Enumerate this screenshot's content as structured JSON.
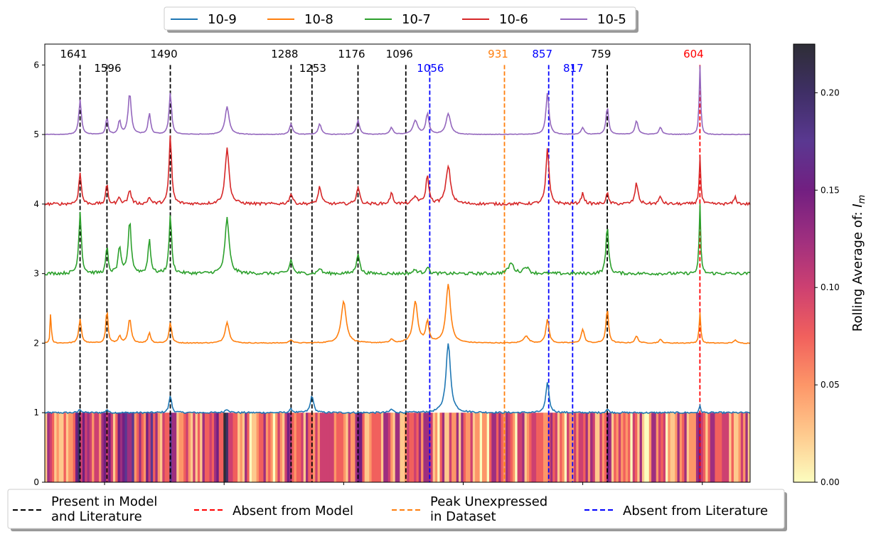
{
  "chart_data": {
    "type": "line",
    "x_range_cm": [
      1700,
      520
    ],
    "ylim": [
      0,
      6.3
    ],
    "yticks": [
      "0",
      "1",
      "2",
      "3",
      "4",
      "5",
      "6"
    ],
    "series": [
      {
        "name": "10-9",
        "color": "#1f77b4",
        "offset": 1
      },
      {
        "name": "10-8",
        "color": "#ff7f0e",
        "offset": 2
      },
      {
        "name": "10-7",
        "color": "#2ca02c",
        "offset": 3
      },
      {
        "name": "10-6",
        "color": "#d62728",
        "offset": 4
      },
      {
        "name": "10-5",
        "color": "#9467bd",
        "offset": 5
      }
    ],
    "peak_lines": [
      {
        "value": 1641,
        "label": "1641",
        "category": "present",
        "label_row": "top"
      },
      {
        "value": 1596,
        "label": "1596",
        "category": "present",
        "label_row": "bottom"
      },
      {
        "value": 1490,
        "label": "1490",
        "category": "present",
        "label_row": "top"
      },
      {
        "value": 1288,
        "label": "1288",
        "category": "present",
        "label_row": "top"
      },
      {
        "value": 1253,
        "label": "1253",
        "category": "present",
        "label_row": "bottom"
      },
      {
        "value": 1176,
        "label": "1176",
        "category": "present",
        "label_row": "top"
      },
      {
        "value": 1096,
        "label": "1096",
        "category": "present",
        "label_row": "top"
      },
      {
        "value": 1056,
        "label": "1056",
        "category": "lit_absent",
        "label_row": "bottom"
      },
      {
        "value": 931,
        "label": "931",
        "category": "unexpressed",
        "label_row": "top"
      },
      {
        "value": 857,
        "label": "857",
        "category": "lit_absent",
        "label_row": "top"
      },
      {
        "value": 817,
        "label": "817",
        "category": "lit_absent",
        "label_row": "bottom"
      },
      {
        "value": 759,
        "label": "759",
        "category": "present",
        "label_row": "top"
      },
      {
        "value": 604,
        "label": "604",
        "category": "model_absent",
        "label_row": "top"
      }
    ],
    "line_legend": [
      {
        "key": "present",
        "label_1": "Present in Model",
        "label_2": "and Literature",
        "color": "#000000"
      },
      {
        "key": "model_absent",
        "label_1": "Absent from Model",
        "label_2": "",
        "color": "#ff0000"
      },
      {
        "key": "unexpressed",
        "label_1": "Peak Unexpressed",
        "label_2": "in Dataset",
        "color": "#ff7f0e"
      },
      {
        "key": "lit_absent",
        "label_1": "Absent from Literature",
        "label_2": "",
        "color": "#0000ff"
      }
    ],
    "label_colors": {
      "present": "#000000",
      "model_absent": "#ff0000",
      "unexpressed": "#ff7f0e",
      "lit_absent": "#0000ff"
    },
    "colorbar": {
      "label": "Rolling Average of: ",
      "label_symbol": "I",
      "label_sub": "m",
      "range": [
        0,
        0.225
      ],
      "ticks": [
        "0.00",
        "0.05",
        "0.10",
        "0.15",
        "0.20"
      ],
      "tick_values": [
        0,
        0.05,
        0.1,
        0.15,
        0.2
      ],
      "colors": [
        "#fcfdbf",
        "#fec98d",
        "#fd9668",
        "#f1605d",
        "#cd4071",
        "#9e2f7f",
        "#721f81",
        "#5a3891",
        "#3f2f66",
        "#2e2e36"
      ]
    },
    "peaks": [
      [
        1690,
        1.0,
        0.0,
        0.0,
        0.5,
        0.0,
        0.0,
        0.0,
        0.6
      ],
      [
        1672,
        0.0,
        0.15,
        0.1,
        0.0,
        0.0,
        0.0,
        0.0,
        0.0
      ],
      [
        1660,
        0.0,
        0.0,
        0.5,
        0.0,
        0.0,
        0.0,
        0.0,
        0.0
      ],
      [
        1641,
        2.5,
        0.75,
        0.05,
        0.35,
        0.9,
        0.45,
        0.5,
        0.4
      ],
      [
        1596,
        2.0,
        0.4,
        0.05,
        0.5,
        0.4,
        0.3,
        0.25,
        0.25
      ],
      [
        1575,
        2.5,
        0.5,
        0.0,
        0.1,
        0.4,
        0.1,
        0.2,
        0.1
      ],
      [
        1558,
        3.0,
        0.8,
        0.0,
        0.35,
        0.75,
        0.2,
        0.6,
        0.2
      ],
      [
        1525,
        2.5,
        0.5,
        0.0,
        0.15,
        0.5,
        0.1,
        0.3,
        0.15
      ],
      [
        1490,
        2.5,
        0.8,
        0.25,
        0.3,
        0.85,
        1.0,
        0.6,
        0.5
      ],
      [
        1418,
        3.0,
        0.4,
        0.0,
        0.0,
        0.0,
        0.0,
        0.0,
        0.0
      ],
      [
        1395,
        4.0,
        0.95,
        0.05,
        0.3,
        0.8,
        0.8,
        0.4,
        0.5
      ],
      [
        1288,
        3.0,
        0.5,
        0.05,
        0.05,
        0.2,
        0.15,
        0.15,
        0.2
      ],
      [
        1253,
        3.0,
        0.0,
        0.25,
        0.0,
        0.0,
        0.0,
        0.0,
        0.0
      ],
      [
        1240,
        3.0,
        0.0,
        0.0,
        0.0,
        0.08,
        0.25,
        0.15,
        0.1
      ],
      [
        1200,
        5.0,
        0.15,
        0.0,
        0.6,
        0.0,
        0.0,
        0.0,
        0.0
      ],
      [
        1176,
        3.0,
        0.35,
        0.0,
        0.0,
        0.3,
        0.25,
        0.2,
        0.2
      ],
      [
        1120,
        3.0,
        0.1,
        0.05,
        0.05,
        0.0,
        0.15,
        0.1,
        0.1
      ],
      [
        1080,
        4.5,
        0.3,
        0.0,
        0.6,
        0.05,
        0.1,
        0.2,
        0.1
      ],
      [
        1060,
        3.0,
        0.1,
        0.0,
        0.3,
        0.1,
        0.4,
        0.3,
        0.3
      ],
      [
        1025,
        4.5,
        0.0,
        1.0,
        0.85,
        0.0,
        0.55,
        0.3,
        0.4
      ],
      [
        985,
        4.0,
        0.0,
        0.0,
        0.0,
        0.0,
        0.0,
        0.0,
        0.0
      ],
      [
        920,
        5.0,
        0.0,
        0.0,
        0.0,
        0.15,
        0.0,
        0.0,
        0.0
      ],
      [
        895,
        5.0,
        0.12,
        0.0,
        0.1,
        0.1,
        0.0,
        0.0,
        0.0
      ],
      [
        859,
        3.0,
        0.25,
        0.45,
        0.35,
        0.0,
        0.8,
        0.6,
        0.5
      ],
      [
        800,
        3.0,
        0.0,
        0.0,
        0.2,
        0.0,
        0.15,
        0.1,
        0.1
      ],
      [
        759,
        2.5,
        0.5,
        0.05,
        0.5,
        0.7,
        0.15,
        0.4,
        0.3
      ],
      [
        710,
        3.0,
        0.0,
        0.0,
        0.1,
        0.0,
        0.3,
        0.2,
        0.1
      ],
      [
        670,
        3.0,
        0.0,
        0.0,
        0.05,
        0.0,
        0.1,
        0.1,
        0.05
      ],
      [
        604,
        1.5,
        1.0,
        0.1,
        0.45,
        1.0,
        0.7,
        1.0,
        1.0
      ],
      [
        545,
        2.5,
        0.0,
        0.0,
        0.05,
        0.0,
        0.1,
        0.0,
        0.0
      ]
    ]
  }
}
